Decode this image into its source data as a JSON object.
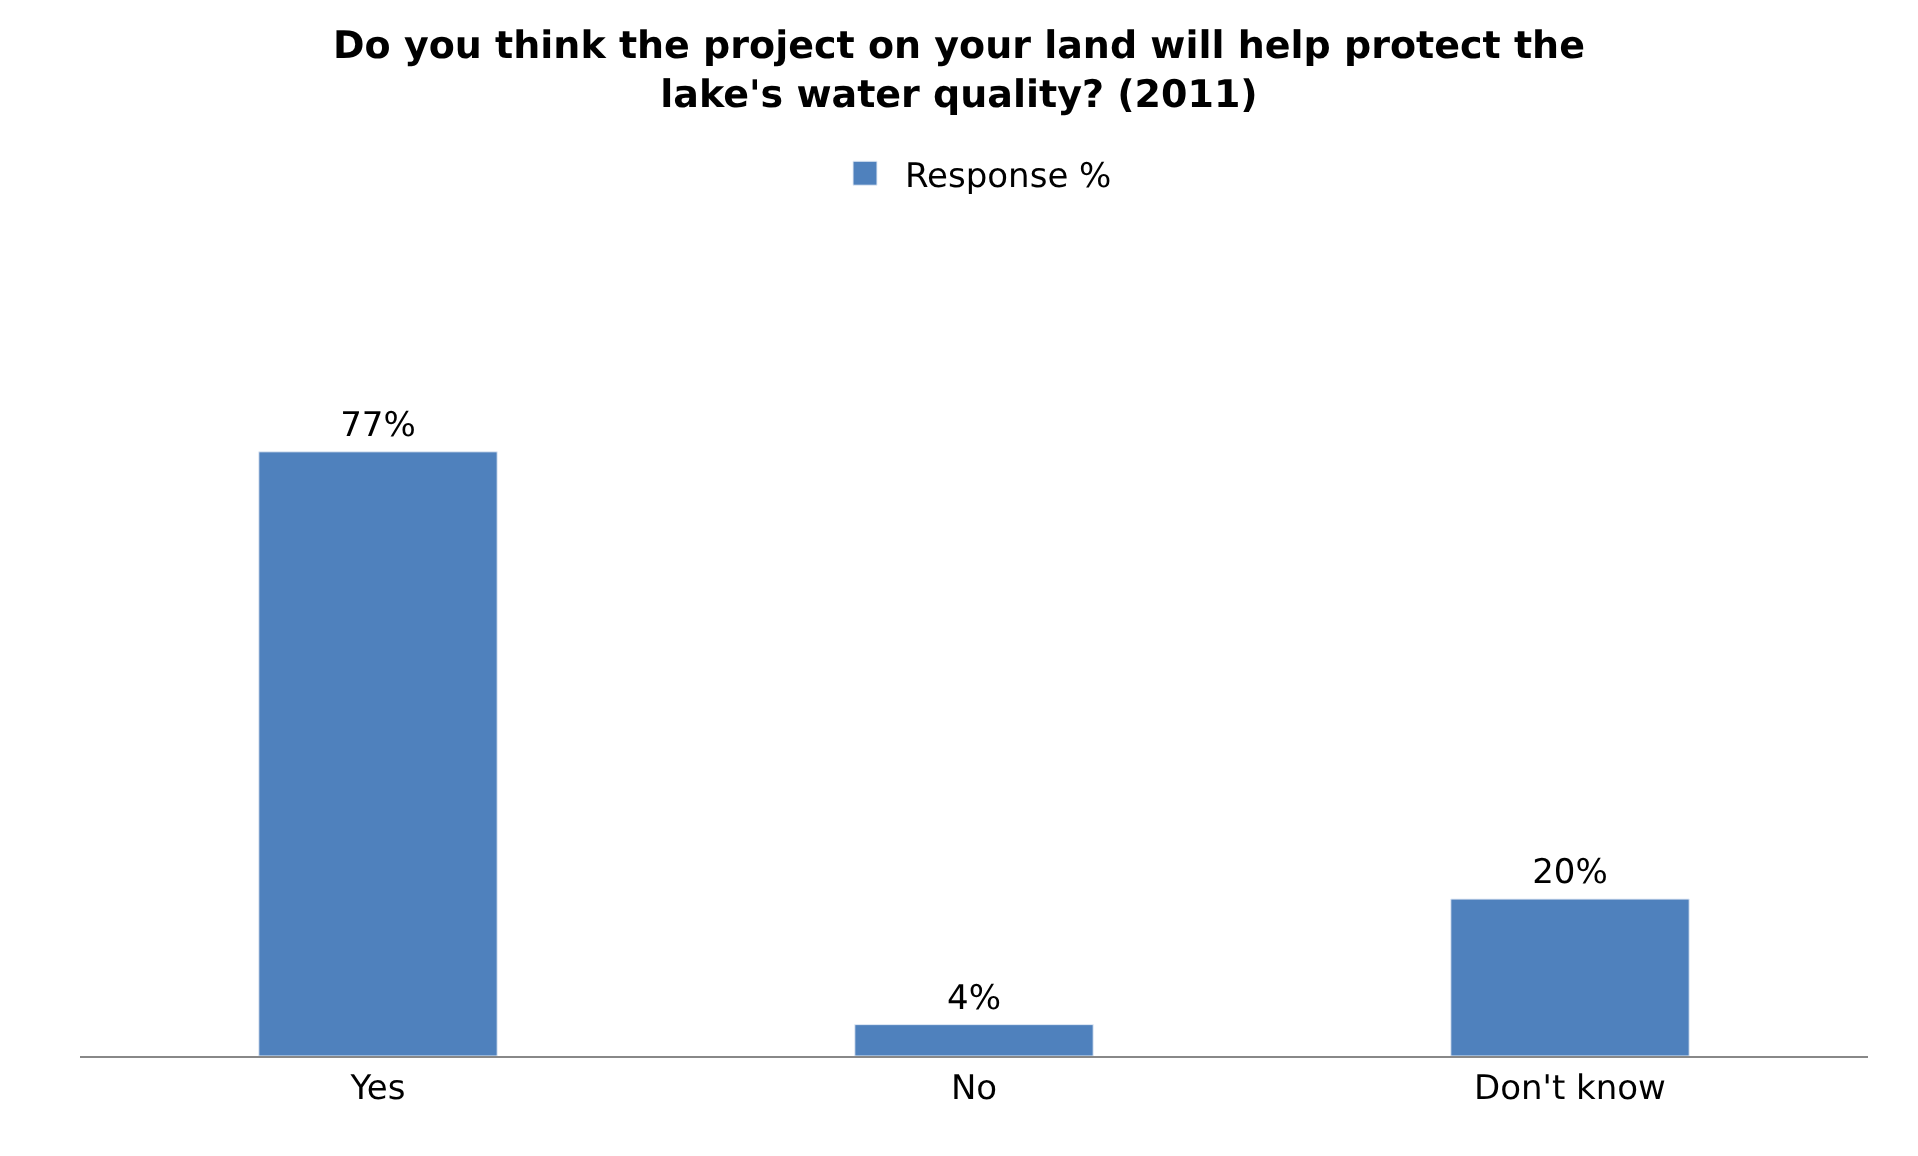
{
  "chart_data": {
    "type": "bar",
    "title": "Do you think the project on your land will help protect the lake's water quality? (2011)",
    "categories": [
      "Yes",
      "No",
      "Don't know"
    ],
    "series": [
      {
        "name": "Response %",
        "color": "#4f81bd",
        "values": [
          77,
          4,
          20
        ],
        "value_labels": [
          "77%",
          "4%",
          "20%"
        ]
      }
    ],
    "legend": "top"
  }
}
